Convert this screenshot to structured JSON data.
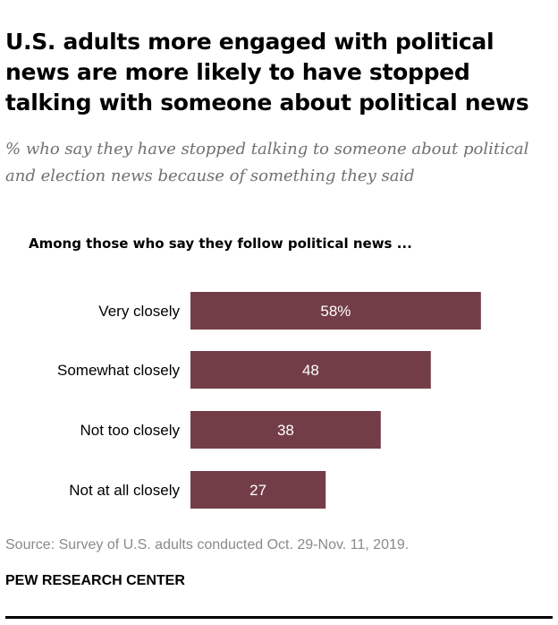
{
  "title": "U.S. adults more engaged with political news are more likely to have stopped talking with someone about political news",
  "subtitle": "% who say they have stopped talking to someone about political and election news because of something they said",
  "chart_data": {
    "type": "bar",
    "orientation": "horizontal",
    "intro": "Among those who say they follow political news ...",
    "categories": [
      "Very closely",
      "Somewhat closely",
      "Not too closely",
      "Not at all closely"
    ],
    "values": [
      58,
      48,
      38,
      27
    ],
    "value_labels": [
      "58%",
      "48",
      "38",
      "27"
    ],
    "bar_color": "#733d47",
    "label_color": "#ffffff"
  },
  "source": "Source: Survey of U.S. adults conducted Oct. 29-Nov. 11, 2019.",
  "credit": "PEW RESEARCH CENTER"
}
